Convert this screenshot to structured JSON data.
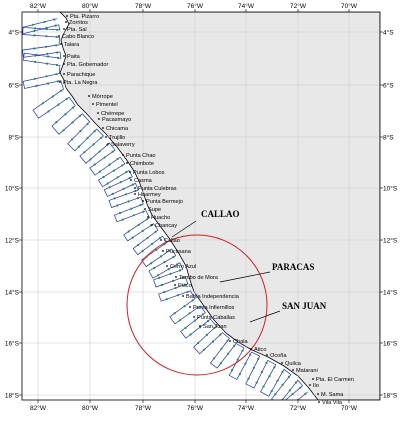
{
  "map": {
    "colors": {
      "sea": "#ffffff",
      "land": "#e8e8e8",
      "coast": "#000000",
      "grid": "#c8c8c8",
      "transect": "#1a2fd0",
      "station": "#2a8a4a",
      "circle": "#d42020"
    },
    "lon_labels": [
      "82°W",
      "80°W",
      "78°W",
      "76°W",
      "74°W",
      "72°W",
      "70°W"
    ],
    "lat_labels": [
      "4°S",
      "6°S",
      "8°S",
      "10°S",
      "12°S",
      "14°S",
      "16°S",
      "18°S"
    ],
    "places": [
      {
        "name": "Pta. Pizarro"
      },
      {
        "name": "Zorritos"
      },
      {
        "name": "Pta. Sal"
      },
      {
        "name": "Cabo Blanco"
      },
      {
        "name": "Talara"
      },
      {
        "name": "Paita"
      },
      {
        "name": "Pta. Gobernador"
      },
      {
        "name": "Parachique"
      },
      {
        "name": "Pta. La Negra"
      },
      {
        "name": "Mórrope"
      },
      {
        "name": "Pimentel"
      },
      {
        "name": "Chérrepe"
      },
      {
        "name": "Pacasmayo"
      },
      {
        "name": "Chicama"
      },
      {
        "name": "Trujillo"
      },
      {
        "name": "Salaverry"
      },
      {
        "name": "Punta Chao"
      },
      {
        "name": "Chimbote"
      },
      {
        "name": "Punta Lobos"
      },
      {
        "name": "Casma"
      },
      {
        "name": "Punta Culebras"
      },
      {
        "name": "Huarmey"
      },
      {
        "name": "Punta Bermejo"
      },
      {
        "name": "Supe"
      },
      {
        "name": "Huacho"
      },
      {
        "name": "Chancay"
      },
      {
        "name": "Callao"
      },
      {
        "name": "Pucusana"
      },
      {
        "name": "Cerro Azul"
      },
      {
        "name": "Tambo de Mora"
      },
      {
        "name": "Pisco"
      },
      {
        "name": "Bahía Independencia"
      },
      {
        "name": "Punta Infiernillos"
      },
      {
        "name": "Punta Caballas"
      },
      {
        "name": "San Juan"
      },
      {
        "name": "Chala"
      },
      {
        "name": "Atico"
      },
      {
        "name": "Ocoña"
      },
      {
        "name": "Quilca"
      },
      {
        "name": "Matarani"
      },
      {
        "name": "Pta. El Carmen"
      },
      {
        "name": "Ilo"
      },
      {
        "name": "M. Sama"
      },
      {
        "name": "Vila Vila"
      }
    ],
    "callouts": [
      {
        "name": "CALLAO"
      },
      {
        "name": "PARACAS"
      },
      {
        "name": "SAN JUAN"
      }
    ]
  }
}
